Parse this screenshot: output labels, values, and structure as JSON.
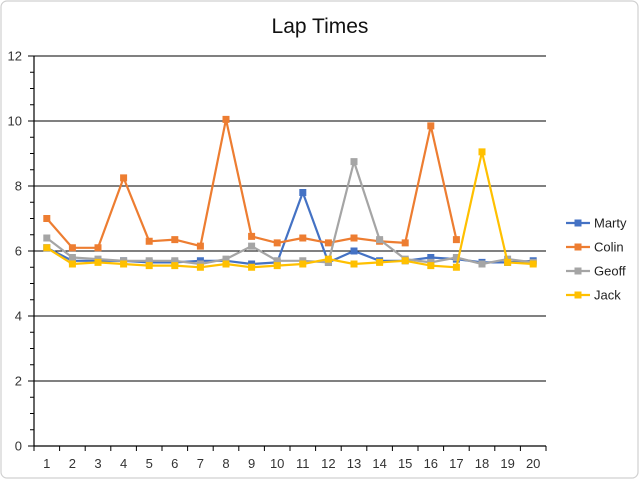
{
  "chart_data": {
    "type": "line",
    "title": "Lap Times",
    "xlabel": "",
    "ylabel": "",
    "x": [
      1,
      2,
      3,
      4,
      5,
      6,
      7,
      8,
      9,
      10,
      11,
      12,
      13,
      14,
      15,
      16,
      17,
      18,
      19,
      20
    ],
    "x_tick_labels": [
      "1",
      "2",
      "3",
      "4",
      "5",
      "6",
      "7",
      "8",
      "9",
      "10",
      "11",
      "12",
      "13",
      "14",
      "15",
      "16",
      "17",
      "18",
      "19",
      "20"
    ],
    "ylim": [
      0,
      12
    ],
    "y_ticks": [
      0,
      2,
      4,
      6,
      8,
      10,
      12
    ],
    "y_tick_labels": [
      "0",
      "2",
      "4",
      "6",
      "8",
      "10",
      "12"
    ],
    "grid": true,
    "legend_position": "right",
    "series": [
      {
        "name": "Marty",
        "color": "#4472C4",
        "values": [
          6.1,
          5.7,
          5.7,
          5.7,
          5.65,
          5.65,
          5.7,
          5.7,
          5.6,
          5.65,
          7.8,
          5.65,
          6.0,
          5.7,
          5.7,
          5.8,
          5.75,
          5.65,
          5.65,
          5.7
        ]
      },
      {
        "name": "Colin",
        "color": "#ED7D31",
        "values": [
          7.0,
          6.1,
          6.1,
          8.25,
          6.3,
          6.35,
          6.15,
          10.05,
          6.45,
          6.25,
          6.4,
          6.25,
          6.4,
          6.3,
          6.25,
          9.85,
          6.35,
          null,
          null,
          null
        ]
      },
      {
        "name": "Geoff",
        "color": "#A5A5A5",
        "values": [
          6.4,
          5.8,
          5.75,
          5.7,
          5.7,
          5.7,
          5.6,
          5.75,
          6.15,
          5.7,
          5.7,
          5.65,
          8.75,
          6.35,
          5.75,
          5.65,
          5.8,
          5.6,
          5.75,
          5.65
        ]
      },
      {
        "name": "Jack",
        "color": "#FFC000",
        "values": [
          6.1,
          5.6,
          5.65,
          5.6,
          5.55,
          5.55,
          5.5,
          5.6,
          5.5,
          5.55,
          5.6,
          5.75,
          5.6,
          5.65,
          5.7,
          5.55,
          5.5,
          9.05,
          5.65,
          5.6
        ]
      }
    ]
  }
}
